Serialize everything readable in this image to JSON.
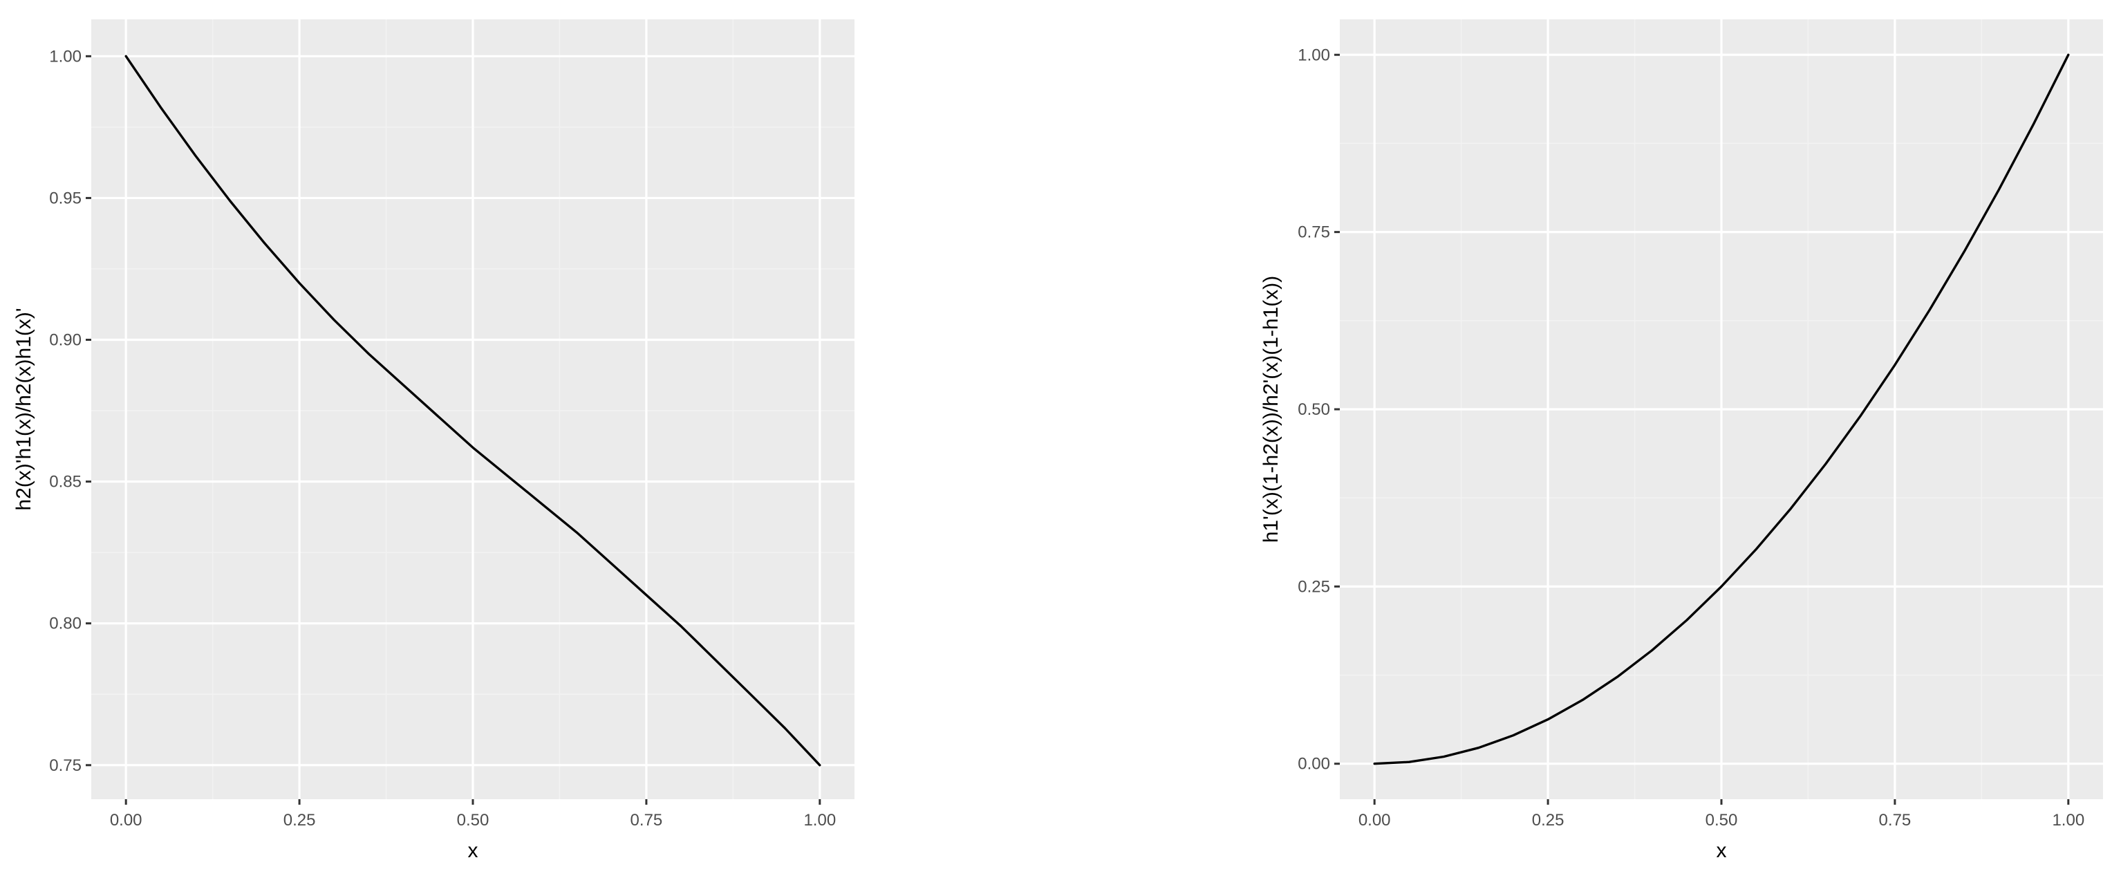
{
  "colors": {
    "panel_background": "#ebebeb",
    "grid_major": "#ffffff",
    "grid_minor": "#f2f2f2",
    "tick": "#333333",
    "tick_label": "#4d4d4d",
    "line": "#000000"
  },
  "chart_data": [
    {
      "type": "line",
      "title": "",
      "xlabel": "x",
      "ylabel": "h2(x)'h1(x)/h2(x)h1(x)'",
      "xlim": [
        -0.05,
        1.05
      ],
      "ylim": [
        0.738,
        1.013
      ],
      "x_ticks": [
        0,
        0.25,
        0.5,
        0.75,
        1
      ],
      "x_tick_labels": [
        "0.00",
        "0.25",
        "0.50",
        "0.75",
        "1.00"
      ],
      "y_ticks": [
        0.75,
        0.8,
        0.85,
        0.9,
        0.95,
        1
      ],
      "y_tick_labels": [
        "0.75",
        "0.80",
        "0.85",
        "0.90",
        "0.95",
        "1.00"
      ],
      "grid": true,
      "legend": "none",
      "series": [
        {
          "color": "#000000",
          "x": [
            0,
            0.05,
            0.1,
            0.15,
            0.2,
            0.25,
            0.3,
            0.35,
            0.4,
            0.45,
            0.5,
            0.55,
            0.6,
            0.65,
            0.7,
            0.75,
            0.8,
            0.85,
            0.9,
            0.95,
            1
          ],
          "y": [
            1.0,
            0.982,
            0.965,
            0.949,
            0.934,
            0.92,
            0.907,
            0.895,
            0.884,
            0.873,
            0.862,
            0.852,
            0.842,
            0.832,
            0.821,
            0.81,
            0.799,
            0.787,
            0.775,
            0.763,
            0.75
          ]
        }
      ]
    },
    {
      "type": "line",
      "title": "",
      "xlabel": "x",
      "ylabel": "h1'(x)(1-h2(x))/h2'(x)(1-h1(x))",
      "xlim": [
        -0.05,
        1.05
      ],
      "ylim": [
        -0.05,
        1.05
      ],
      "x_ticks": [
        0,
        0.25,
        0.5,
        0.75,
        1
      ],
      "x_tick_labels": [
        "0.00",
        "0.25",
        "0.50",
        "0.75",
        "1.00"
      ],
      "y_ticks": [
        0,
        0.25,
        0.5,
        0.75,
        1
      ],
      "y_tick_labels": [
        "0.00",
        "0.25",
        "0.50",
        "0.75",
        "1.00"
      ],
      "grid": true,
      "legend": "none",
      "series": [
        {
          "color": "#000000",
          "x": [
            0,
            0.05,
            0.1,
            0.15,
            0.2,
            0.25,
            0.3,
            0.35,
            0.4,
            0.45,
            0.5,
            0.55,
            0.6,
            0.65,
            0.7,
            0.75,
            0.8,
            0.85,
            0.9,
            0.95,
            1
          ],
          "y": [
            0,
            0.0025,
            0.01,
            0.0225,
            0.04,
            0.0625,
            0.09,
            0.1225,
            0.16,
            0.2025,
            0.25,
            0.3025,
            0.36,
            0.4225,
            0.49,
            0.5625,
            0.64,
            0.7225,
            0.81,
            0.9025,
            1.0
          ]
        }
      ]
    }
  ]
}
